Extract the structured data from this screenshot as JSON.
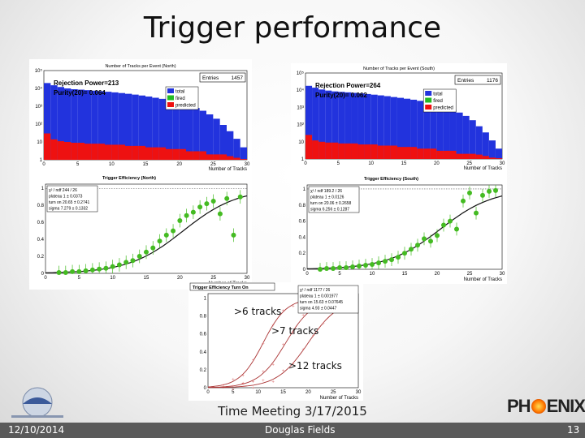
{
  "slide": {
    "title": "Trigger performance",
    "annotations": {
      "a6": ">6 tracks",
      "a7": ">7 tracks",
      "a12": ">12 tracks"
    },
    "caption": "Time Meeting 3/17/2015",
    "footer": {
      "date": "12/10/2014",
      "author": "Douglas Fields",
      "page": "13"
    },
    "logo_right": {
      "before": "PH",
      "after": "ENIX"
    }
  },
  "colors": {
    "total": "#2233dd",
    "fired": "#22bb22",
    "predicted": "#ee1111",
    "fit": "#111111",
    "eff_a": "#cc3333",
    "eff_b": "#44bb22"
  },
  "chart_data": [
    {
      "type": "bar",
      "title": "Number of Tracks per Event (North)",
      "xlabel": "Number of Tracks",
      "entries_label": "Entries",
      "entries": "1457",
      "rejection": "Rejection Power=213",
      "purity": "Purity(20)= 0.064",
      "legend": [
        "total",
        "fired",
        "predicted"
      ],
      "y_log": true,
      "ylim": [
        1,
        100000
      ],
      "xlim": [
        0,
        30
      ],
      "xticks": [
        "0",
        "5",
        "10",
        "15",
        "20",
        "25",
        "30"
      ],
      "yticks": [
        "1",
        "10",
        "10²",
        "10³",
        "10⁴",
        "10⁵"
      ],
      "total": [
        20000,
        15000,
        12000,
        10000,
        9000,
        8500,
        8000,
        7500,
        7000,
        6500,
        6000,
        5500,
        5000,
        4500,
        4000,
        3500,
        3000,
        2600,
        2200,
        1800,
        1400,
        1100,
        800,
        560,
        350,
        200,
        90,
        40,
        15,
        5
      ],
      "predicted": [
        30,
        14,
        11,
        10,
        9,
        9,
        8,
        8,
        8,
        7,
        7,
        7,
        6,
        6,
        6,
        5,
        5,
        5,
        4,
        4,
        4,
        3,
        3,
        3,
        2,
        2,
        2,
        1.6,
        1.3,
        1.1
      ]
    },
    {
      "type": "bar",
      "title": "Number of Tracks per Event (South)",
      "xlabel": "Number of Tracks",
      "entries_label": "Entries",
      "entries": "1176",
      "rejection": "Rejection Power=264",
      "purity": "Purity(20)= 0.062",
      "legend": [
        "total",
        "fired",
        "predicted"
      ],
      "y_log": true,
      "ylim": [
        1,
        100000
      ],
      "xlim": [
        0,
        30
      ],
      "xticks": [
        "0",
        "5",
        "10",
        "15",
        "20",
        "25",
        "30"
      ],
      "yticks": [
        "1",
        "10",
        "10²",
        "10³",
        "10⁴",
        "10⁵"
      ],
      "total": [
        18000,
        14000,
        11000,
        9500,
        8500,
        8000,
        7500,
        7000,
        6500,
        6000,
        5500,
        5000,
        4500,
        4000,
        3600,
        3200,
        2800,
        2400,
        2000,
        1600,
        1300,
        1000,
        750,
        500,
        320,
        180,
        80,
        35,
        12,
        4
      ],
      "predicted": [
        25,
        12,
        10,
        9,
        9,
        8,
        8,
        8,
        7,
        7,
        7,
        6,
        6,
        6,
        5,
        5,
        5,
        4,
        4,
        4,
        3,
        3,
        3,
        2,
        2,
        2,
        1.8,
        1.5,
        1.2,
        1.1
      ]
    },
    {
      "type": "scatter",
      "title": "Trigger Efficiency (North)",
      "xlabel": "Number of Tracks",
      "stats": [
        "χ² / ndf    244 / 26",
        "plateau    1 ± 0.0373",
        "turn on    20.65 ± 0.2741",
        "sigma    7.279 ± 0.1332"
      ],
      "xlim": [
        0,
        30
      ],
      "ylim": [
        0,
        1.05
      ],
      "xticks": [
        "0",
        "5",
        "10",
        "15",
        "20",
        "25",
        "30"
      ],
      "yticks": [
        "0",
        "0.2",
        "0.4",
        "0.6",
        "0.8",
        "1"
      ],
      "x": [
        2,
        3,
        4,
        5,
        6,
        7,
        8,
        9,
        10,
        11,
        12,
        13,
        14,
        15,
        16,
        17,
        18,
        19,
        20,
        21,
        22,
        23,
        24,
        25,
        26,
        27,
        28,
        29
      ],
      "y": [
        0.01,
        0.01,
        0.02,
        0.02,
        0.03,
        0.04,
        0.05,
        0.06,
        0.08,
        0.1,
        0.13,
        0.15,
        0.2,
        0.25,
        0.3,
        0.38,
        0.45,
        0.5,
        0.62,
        0.68,
        0.72,
        0.78,
        0.82,
        0.85,
        0.7,
        0.88,
        0.45,
        0.9
      ]
    },
    {
      "type": "scatter",
      "title": "Trigger Efficiency (South)",
      "xlabel": "Number of Tracks",
      "stats": [
        "χ² / ndf    189.2 / 26",
        "plateau    1 ± 0.0126",
        "turn on    20.06 ± 0.2658",
        "sigma    6.256 ± 0.1287"
      ],
      "xlim": [
        0,
        30
      ],
      "ylim": [
        0,
        1.05
      ],
      "xticks": [
        "0",
        "5",
        "10",
        "15",
        "20",
        "25",
        "30"
      ],
      "yticks": [
        "0",
        "0.2",
        "0.4",
        "0.6",
        "0.8",
        "1"
      ],
      "x": [
        2,
        3,
        4,
        5,
        6,
        7,
        8,
        9,
        10,
        11,
        12,
        13,
        14,
        15,
        16,
        17,
        18,
        19,
        20,
        21,
        22,
        23,
        24,
        25,
        26,
        27,
        28,
        29
      ],
      "y": [
        0.0,
        0.01,
        0.01,
        0.02,
        0.02,
        0.03,
        0.04,
        0.05,
        0.06,
        0.08,
        0.1,
        0.12,
        0.15,
        0.2,
        0.25,
        0.3,
        0.38,
        0.35,
        0.42,
        0.55,
        0.6,
        0.5,
        0.85,
        0.95,
        0.7,
        0.92,
        0.97,
        0.98
      ]
    },
    {
      "type": "line",
      "title": "Trigger Efficiency Turn On",
      "xlabel": "Number of Tracks",
      "stats": [
        "χ² / ndf    1177 / 26",
        "plateau    1 ± 0.001977",
        "turn on    15.63 ± 0.07645",
        "sigma    4.93 ± 0.0447"
      ],
      "xlim": [
        0,
        30
      ],
      "ylim": [
        0,
        1.05
      ],
      "xticks": [
        "0",
        "5",
        "10",
        "15",
        "20",
        "25",
        "30"
      ],
      "yticks": [
        "0",
        "0.2",
        "0.4",
        "0.6",
        "0.8",
        "1"
      ],
      "series_turn_on": [
        11,
        15.5,
        20
      ],
      "series_sigma": [
        4.2,
        4.9,
        5.6
      ]
    }
  ]
}
